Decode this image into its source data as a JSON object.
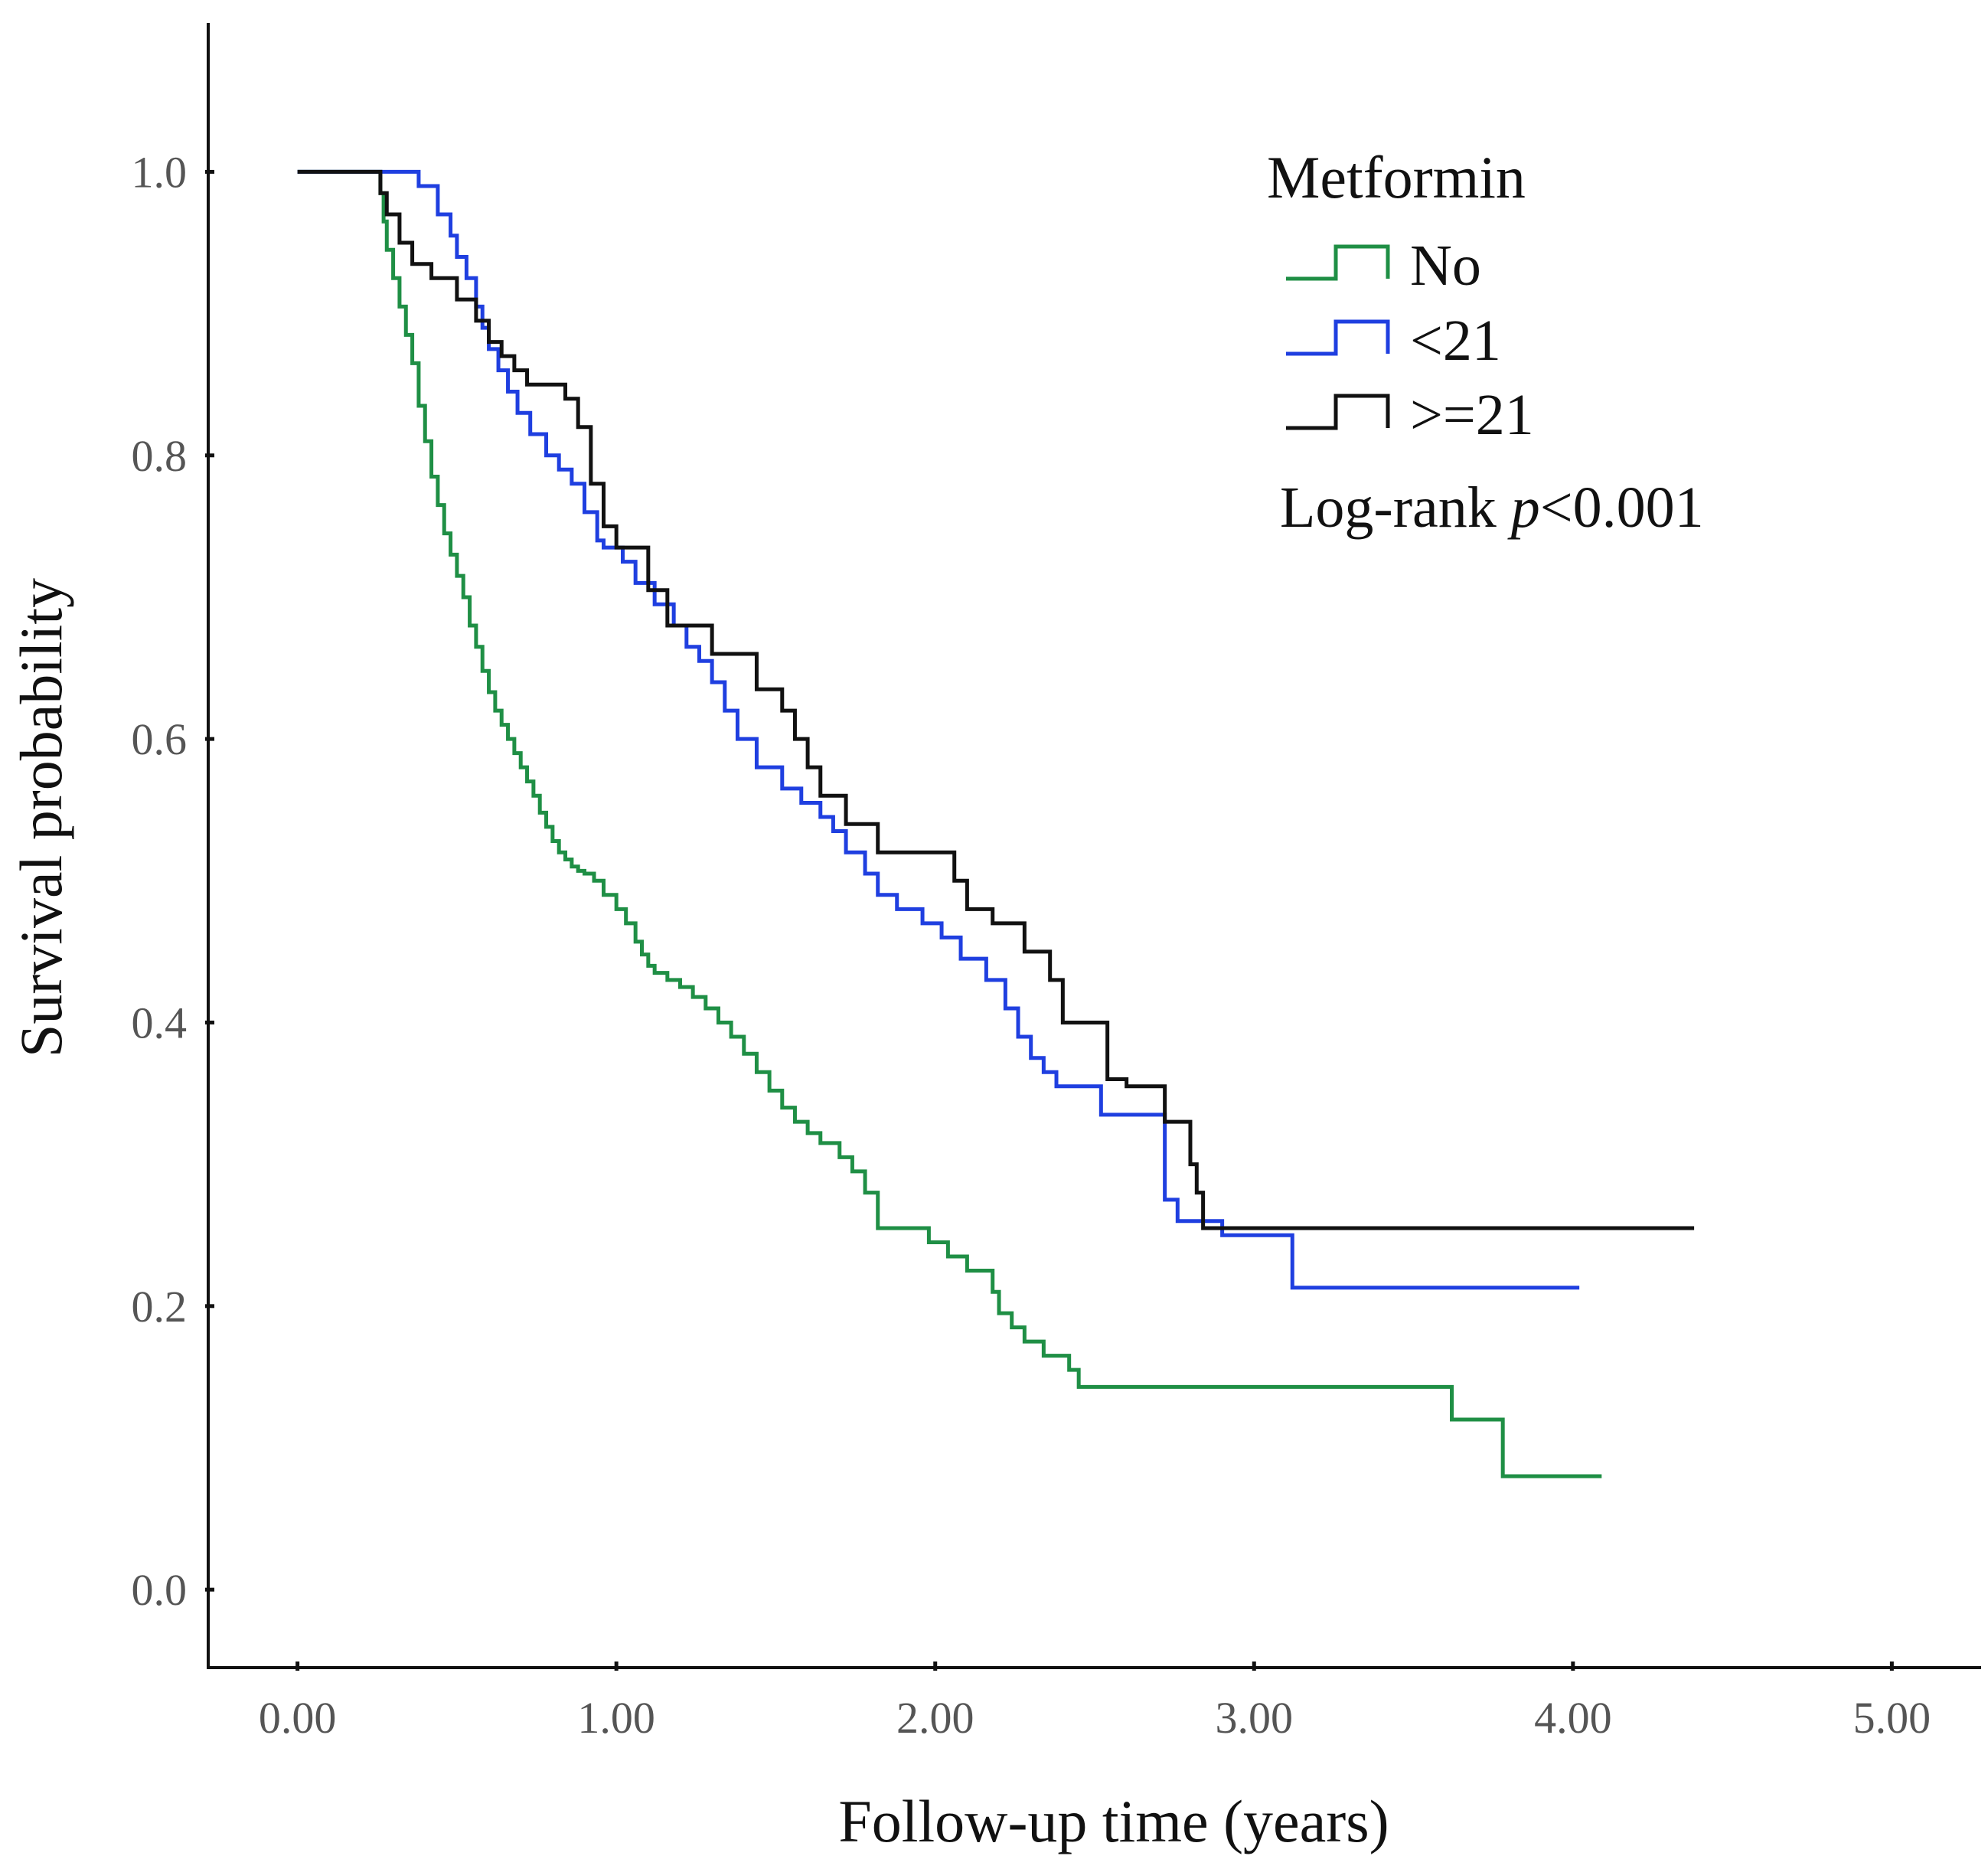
{
  "chart_data": {
    "type": "line",
    "subtype": "kaplan-meier-step",
    "xlabel": "Follow-up time (years)",
    "ylabel": "Survival probability",
    "xlim": [
      -0.28,
      5.28
    ],
    "ylim": [
      -0.055,
      1.105
    ],
    "xticks": [
      0,
      1,
      2,
      3,
      4,
      5
    ],
    "xtick_labels": [
      "0.00",
      "1.00",
      "2.00",
      "3.00",
      "4.00",
      "5.00"
    ],
    "yticks": [
      0,
      0.2,
      0.4,
      0.6,
      0.8,
      1.0
    ],
    "ytick_labels": [
      "0.0",
      "0.2",
      "0.4",
      "0.6",
      "0.8",
      "1.0"
    ],
    "legend": {
      "title": "Metformin",
      "placement": "top-right",
      "annotation_prefix": "Log-rank ",
      "annotation_p": "p",
      "annotation_suffix": "<0.001"
    },
    "series": [
      {
        "name": "No",
        "color": "#1f8f45",
        "x": [
          0,
          0.26,
          0.27,
          0.28,
          0.3,
          0.32,
          0.34,
          0.36,
          0.38,
          0.4,
          0.42,
          0.44,
          0.46,
          0.48,
          0.5,
          0.52,
          0.54,
          0.56,
          0.58,
          0.6,
          0.62,
          0.64,
          0.66,
          0.68,
          0.7,
          0.72,
          0.74,
          0.76,
          0.78,
          0.8,
          0.82,
          0.84,
          0.86,
          0.88,
          0.9,
          0.93,
          0.96,
          1.0,
          1.03,
          1.06,
          1.08,
          1.1,
          1.12,
          1.16,
          1.2,
          1.24,
          1.28,
          1.32,
          1.36,
          1.4,
          1.44,
          1.48,
          1.52,
          1.56,
          1.6,
          1.64,
          1.7,
          1.74,
          1.78,
          1.82,
          1.98,
          2.04,
          2.1,
          2.18,
          2.2,
          2.24,
          2.28,
          2.34,
          2.42,
          2.45,
          3.62,
          3.78,
          4.09
        ],
        "y": [
          1.0,
          0.985,
          0.965,
          0.945,
          0.925,
          0.905,
          0.885,
          0.865,
          0.835,
          0.81,
          0.785,
          0.765,
          0.745,
          0.73,
          0.715,
          0.7,
          0.68,
          0.665,
          0.648,
          0.633,
          0.62,
          0.61,
          0.6,
          0.59,
          0.58,
          0.57,
          0.56,
          0.548,
          0.538,
          0.528,
          0.52,
          0.515,
          0.51,
          0.507,
          0.505,
          0.5,
          0.49,
          0.48,
          0.47,
          0.457,
          0.448,
          0.44,
          0.435,
          0.43,
          0.425,
          0.418,
          0.41,
          0.4,
          0.39,
          0.378,
          0.365,
          0.352,
          0.34,
          0.33,
          0.322,
          0.315,
          0.305,
          0.295,
          0.28,
          0.255,
          0.245,
          0.235,
          0.225,
          0.21,
          0.195,
          0.185,
          0.175,
          0.165,
          0.155,
          0.143,
          0.12,
          0.08,
          0.08
        ]
      },
      {
        "name": "<21",
        "color": "#1f3fe0",
        "x": [
          0,
          0.38,
          0.44,
          0.48,
          0.5,
          0.53,
          0.56,
          0.58,
          0.6,
          0.63,
          0.66,
          0.69,
          0.73,
          0.78,
          0.82,
          0.86,
          0.9,
          0.94,
          0.96,
          1.02,
          1.06,
          1.12,
          1.18,
          1.22,
          1.26,
          1.3,
          1.34,
          1.38,
          1.44,
          1.52,
          1.58,
          1.64,
          1.68,
          1.72,
          1.78,
          1.82,
          1.88,
          1.96,
          2.02,
          2.08,
          2.16,
          2.22,
          2.26,
          2.3,
          2.34,
          2.38,
          2.48,
          2.52,
          2.72,
          2.76,
          2.9,
          3.12,
          3.3,
          4.02
        ],
        "y": [
          1.0,
          0.99,
          0.97,
          0.955,
          0.94,
          0.925,
          0.905,
          0.89,
          0.875,
          0.86,
          0.845,
          0.83,
          0.815,
          0.8,
          0.79,
          0.78,
          0.76,
          0.74,
          0.735,
          0.725,
          0.71,
          0.695,
          0.68,
          0.665,
          0.655,
          0.64,
          0.62,
          0.6,
          0.58,
          0.565,
          0.555,
          0.545,
          0.535,
          0.52,
          0.505,
          0.49,
          0.48,
          0.47,
          0.46,
          0.445,
          0.43,
          0.41,
          0.39,
          0.375,
          0.365,
          0.355,
          0.355,
          0.335,
          0.275,
          0.26,
          0.25,
          0.213,
          0.213,
          0.213
        ]
      },
      {
        "name": ">=21",
        "color": "#111111",
        "x": [
          0,
          0.26,
          0.28,
          0.32,
          0.36,
          0.42,
          0.5,
          0.56,
          0.6,
          0.64,
          0.68,
          0.72,
          0.84,
          0.88,
          0.92,
          0.96,
          1.0,
          1.1,
          1.16,
          1.3,
          1.44,
          1.52,
          1.56,
          1.6,
          1.64,
          1.72,
          1.82,
          2.06,
          2.1,
          2.18,
          2.28,
          2.36,
          2.4,
          2.54,
          2.6,
          2.72,
          2.8,
          2.82,
          2.84,
          3.5,
          4.38
        ],
        "y": [
          1.0,
          0.985,
          0.97,
          0.95,
          0.935,
          0.925,
          0.91,
          0.895,
          0.88,
          0.87,
          0.86,
          0.85,
          0.84,
          0.82,
          0.78,
          0.75,
          0.735,
          0.705,
          0.68,
          0.66,
          0.635,
          0.62,
          0.6,
          0.58,
          0.56,
          0.54,
          0.52,
          0.5,
          0.48,
          0.47,
          0.45,
          0.43,
          0.4,
          0.36,
          0.355,
          0.33,
          0.3,
          0.28,
          0.255,
          0.255,
          0.255
        ]
      }
    ]
  }
}
